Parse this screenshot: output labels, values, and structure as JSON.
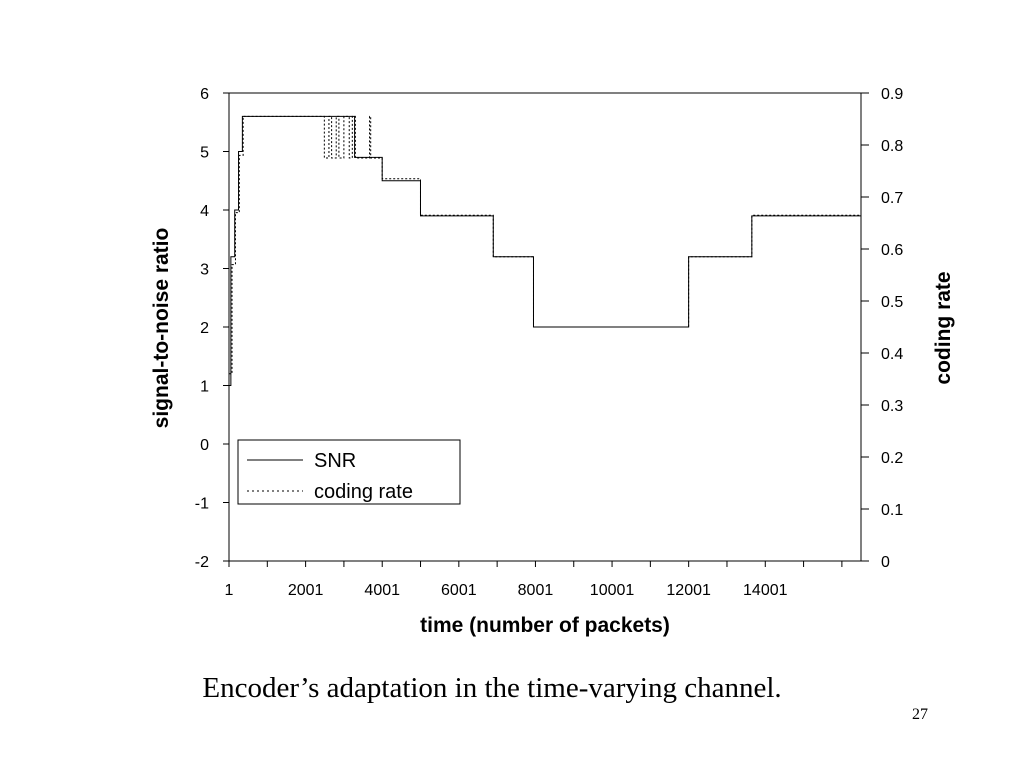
{
  "slide": {
    "caption": "Encoder’s adaptation in the time-varying channel.",
    "page_number": "27"
  },
  "chart_data": {
    "type": "line",
    "xlabel": "time (number of packets)",
    "ylabel": "signal-to-noise ratio",
    "y2label": "coding rate",
    "xlim": [
      1,
      16500
    ],
    "ylim": [
      -2,
      6
    ],
    "y2lim": [
      0,
      0.9
    ],
    "x_ticks": [
      1,
      1001,
      2001,
      3001,
      4001,
      5001,
      6001,
      7001,
      8001,
      9001,
      10001,
      11001,
      12001,
      13001,
      14001,
      15001,
      16001
    ],
    "x_tick_labels": [
      "1",
      "",
      "2001",
      "",
      "4001",
      "",
      "6001",
      "",
      "8001",
      "",
      "10001",
      "",
      "12001",
      "",
      "14001",
      "",
      ""
    ],
    "y_ticks": [
      -2,
      -1,
      0,
      1,
      2,
      3,
      4,
      5,
      6
    ],
    "y_tick_labels": [
      "-2",
      "-1",
      "0",
      "1",
      "2",
      "3",
      "4",
      "5",
      "6"
    ],
    "y2_ticks": [
      0,
      0.1,
      0.2,
      0.3,
      0.4,
      0.5,
      0.6,
      0.7,
      0.8,
      0.9
    ],
    "y2_tick_labels": [
      "0",
      "0.1",
      "0.2",
      "0.3",
      "0.4",
      "0.5",
      "0.6",
      "0.7",
      "0.8",
      "0.9"
    ],
    "grid": false,
    "legend": {
      "position": "bottom-left",
      "entries": [
        "SNR",
        "coding rate"
      ]
    },
    "series": [
      {
        "name": "SNR",
        "axis": "left",
        "style": "solid",
        "points": [
          [
            1,
            1.0
          ],
          [
            50,
            1.0
          ],
          [
            50,
            3.2
          ],
          [
            150,
            3.2
          ],
          [
            150,
            4.0
          ],
          [
            250,
            4.0
          ],
          [
            250,
            5.0
          ],
          [
            350,
            5.0
          ],
          [
            350,
            5.6
          ],
          [
            3280,
            5.6
          ],
          [
            3280,
            4.9
          ],
          [
            4000,
            4.9
          ],
          [
            4000,
            4.5
          ],
          [
            5000,
            4.5
          ],
          [
            5000,
            3.9
          ],
          [
            6900,
            3.9
          ],
          [
            6900,
            3.2
          ],
          [
            7950,
            3.2
          ],
          [
            7950,
            2.0
          ],
          [
            12000,
            2.0
          ],
          [
            12000,
            3.2
          ],
          [
            13650,
            3.2
          ],
          [
            13650,
            3.9
          ],
          [
            16500,
            3.9
          ]
        ]
      },
      {
        "name": "coding rate",
        "axis": "right",
        "style": "dotted",
        "points": [
          [
            1,
            0.36
          ],
          [
            80,
            0.36
          ],
          [
            80,
            0.57
          ],
          [
            170,
            0.57
          ],
          [
            170,
            0.67
          ],
          [
            270,
            0.67
          ],
          [
            270,
            0.78
          ],
          [
            370,
            0.78
          ],
          [
            370,
            0.855
          ],
          [
            2490,
            0.855
          ],
          [
            2490,
            0.775
          ],
          [
            2610,
            0.775
          ],
          [
            2610,
            0.855
          ],
          [
            2680,
            0.855
          ],
          [
            2680,
            0.775
          ],
          [
            2800,
            0.775
          ],
          [
            2800,
            0.855
          ],
          [
            2870,
            0.855
          ],
          [
            2870,
            0.775
          ],
          [
            3000,
            0.775
          ],
          [
            3000,
            0.855
          ],
          [
            3140,
            0.855
          ],
          [
            3140,
            0.775
          ],
          [
            3220,
            0.775
          ],
          [
            3220,
            0.855
          ],
          [
            3300,
            0.855
          ],
          [
            3300,
            0.775
          ],
          [
            3670,
            0.775
          ],
          [
            3670,
            0.855
          ],
          [
            3700,
            0.855
          ],
          [
            3700,
            0.775
          ],
          [
            4000,
            0.775
          ],
          [
            4000,
            0.735
          ],
          [
            5000,
            0.735
          ],
          [
            5000,
            0.665
          ],
          [
            6900,
            0.665
          ],
          [
            6900,
            0.585
          ],
          [
            7950,
            0.585
          ],
          [
            7950,
            0.45
          ],
          [
            12000,
            0.45
          ],
          [
            12000,
            0.585
          ],
          [
            13650,
            0.585
          ],
          [
            13650,
            0.665
          ],
          [
            16500,
            0.665
          ]
        ]
      }
    ]
  }
}
